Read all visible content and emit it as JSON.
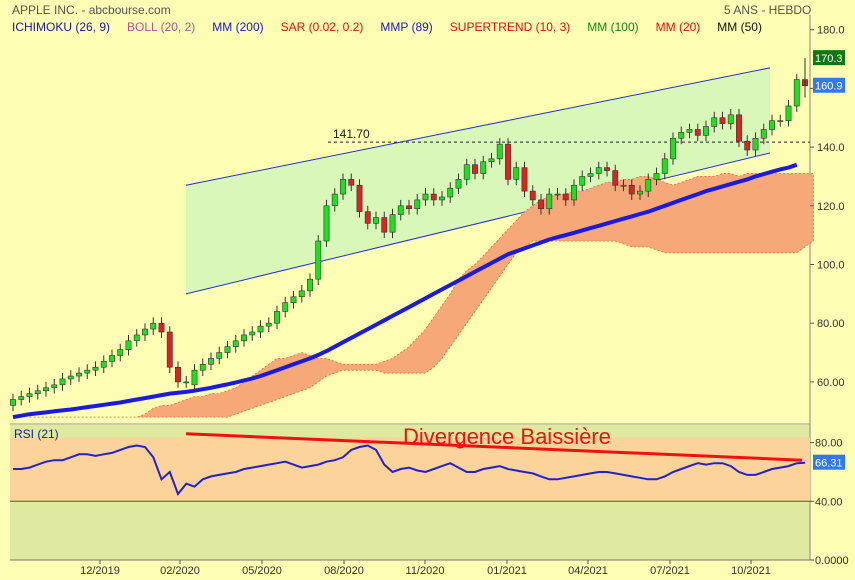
{
  "header": {
    "title": "APPLE INC. - abcbourse.com",
    "period": "5 ANS - HEBDO"
  },
  "indicators": [
    {
      "label": "ICHIMOKU (26, 9)",
      "color": "#1a1aa0"
    },
    {
      "label": "BOLL (20, 2)",
      "color": "#b05a8a"
    },
    {
      "label": "MM (200)",
      "color": "#1a1acc"
    },
    {
      "label": "SAR (0.02, 0.2)",
      "color": "#dd1111"
    },
    {
      "label": "MMP (89)",
      "color": "#1a1acc"
    },
    {
      "label": "SUPERTREND (10, 3)",
      "color": "#dd1111"
    },
    {
      "label": "MM (100)",
      "color": "#118811"
    },
    {
      "label": "MM (20)",
      "color": "#dd1111"
    },
    {
      "label": "MM (50)",
      "color": "#111111"
    }
  ],
  "chart_data": [
    {
      "type": "candlestick",
      "title": "APPLE INC.",
      "x_ticks": [
        "12/2019",
        "02/2020",
        "05/2020",
        "08/2020",
        "11/2020",
        "01/2021",
        "04/2021",
        "07/2021",
        "10/2021"
      ],
      "y_ticks": [
        60.0,
        80.0,
        100.0,
        120.0,
        140.0,
        160.0,
        180.0
      ],
      "y_tick_labels": [
        "60.00",
        "80.00",
        "100.0",
        "120.0",
        "140.0",
        "160.0",
        "180.0"
      ],
      "ylim": [
        46,
        185
      ],
      "last_high_label": "170.3",
      "last_close_label": "160.9",
      "last_high": 170.3,
      "last_close": 160.9,
      "annotation": {
        "label": "141.70",
        "value": 141.7
      },
      "closes": [
        54,
        55,
        56,
        57,
        58,
        59,
        61,
        62,
        63,
        64,
        65,
        67,
        69,
        71,
        74,
        76,
        78,
        80,
        77,
        65,
        60,
        60,
        64,
        66,
        68,
        70,
        72,
        74,
        76,
        77,
        79,
        80,
        84,
        87,
        89,
        91,
        95,
        108,
        120,
        124,
        129,
        127,
        118,
        114,
        116,
        111,
        117,
        120,
        119,
        122,
        124,
        122,
        123,
        126,
        129,
        134,
        131,
        135,
        136,
        141,
        129,
        133,
        125,
        122,
        119,
        124,
        124,
        122,
        127,
        130,
        131,
        133,
        132,
        127,
        127,
        124,
        125,
        129,
        131,
        136,
        143,
        145,
        146,
        144,
        147,
        150,
        148,
        151,
        142,
        139,
        143,
        146,
        149,
        149,
        154,
        163,
        160.9
      ],
      "opens": [
        52,
        54,
        55,
        56,
        57,
        58,
        59,
        61,
        62,
        63,
        64,
        65,
        67,
        69,
        71,
        74,
        76,
        78,
        80,
        77,
        65,
        60,
        59,
        64,
        66,
        68,
        70,
        72,
        74,
        76,
        77,
        79,
        80,
        84,
        87,
        89,
        91,
        95,
        108,
        120,
        124,
        129,
        127,
        118,
        114,
        116,
        111,
        117,
        120,
        119,
        122,
        124,
        122,
        123,
        126,
        129,
        134,
        131,
        135,
        136,
        141,
        129,
        133,
        125,
        122,
        119,
        124,
        124,
        122,
        127,
        130,
        131,
        133,
        132,
        127,
        127,
        124,
        125,
        129,
        131,
        136,
        143,
        145,
        146,
        144,
        147,
        150,
        148,
        151,
        142,
        139,
        143,
        146,
        149,
        149,
        154,
        163
      ],
      "ma200": [
        48,
        48.5,
        49,
        49.3,
        49.6,
        50,
        50.3,
        50.6,
        51,
        51.4,
        51.8,
        52.2,
        52.6,
        53,
        53.5,
        54,
        54.5,
        55,
        55.5,
        56,
        56.3,
        56.6,
        57,
        57.5,
        58,
        58.6,
        59.2,
        59.8,
        60.5,
        61.2,
        62,
        63,
        64,
        65,
        66,
        67,
        68,
        69.2,
        70.5,
        72,
        73.5,
        75,
        76.5,
        78,
        79.5,
        81,
        82.5,
        84,
        85.5,
        87,
        88.5,
        90,
        91.5,
        93,
        94.5,
        96,
        97.5,
        99,
        100.5,
        102,
        103.5,
        104.5,
        105.5,
        106.5,
        107.5,
        108.5,
        109.3,
        110,
        110.8,
        111.6,
        112.4,
        113.2,
        114,
        114.8,
        115.6,
        116.4,
        117.2,
        118,
        119,
        120,
        121,
        122,
        123,
        124,
        125,
        125.8,
        126.6,
        127.4,
        128.2,
        129,
        130,
        130.8,
        131.6,
        132.4,
        133,
        134
      ],
      "cloud_a": [
        48,
        48,
        48,
        48,
        48,
        48,
        48,
        48,
        48,
        48,
        48,
        48,
        48,
        48,
        49,
        51,
        52,
        52,
        53,
        54,
        55,
        55,
        56,
        56,
        57,
        58,
        60,
        62,
        64,
        66,
        68,
        68,
        69,
        70,
        69,
        68,
        68,
        67,
        66,
        66,
        66,
        66,
        66,
        67,
        68,
        70,
        72,
        75,
        78,
        82,
        86,
        90,
        95,
        98,
        100,
        103,
        106,
        109,
        112,
        115,
        118,
        120,
        122,
        123,
        124,
        124,
        125,
        125,
        126,
        127,
        128,
        128,
        129,
        129,
        130,
        130,
        129,
        128,
        127,
        128,
        129,
        130,
        130,
        130,
        131,
        131,
        130,
        131,
        131,
        131,
        131,
        131,
        131,
        131,
        131,
        131
      ],
      "cloud_b": [
        48,
        48,
        48,
        48,
        48,
        48,
        48,
        48,
        48,
        48,
        48,
        48,
        48,
        48,
        48,
        48,
        48,
        48,
        48,
        48,
        48,
        48,
        48,
        48,
        48,
        49,
        50,
        51,
        52,
        53,
        54,
        55,
        56,
        57,
        58,
        60,
        62,
        63,
        64,
        64,
        64,
        64,
        64,
        63,
        63,
        63,
        63,
        63,
        63,
        65,
        68,
        72,
        76,
        80,
        84,
        88,
        92,
        96,
        100,
        104,
        106,
        108,
        108,
        108,
        108,
        108,
        108,
        108,
        108,
        108,
        108,
        108,
        107,
        106,
        106,
        106,
        105,
        104,
        104,
        104,
        104,
        104,
        104,
        104,
        104,
        104,
        104,
        104,
        104,
        104,
        104,
        104,
        104,
        104,
        106,
        108,
        110,
        112,
        113
      ],
      "channel": {
        "upper": [
          [
            0.22,
            127
          ],
          [
            0.95,
            167
          ]
        ],
        "lower": [
          [
            0.22,
            90
          ],
          [
            0.95,
            138
          ]
        ]
      }
    },
    {
      "type": "line",
      "title": "RSI (21)",
      "y_ticks": [
        0.0,
        40.0,
        80.0
      ],
      "y_tick_labels": [
        "0.0000",
        "40.00",
        "80.00"
      ],
      "ylim": [
        0,
        92
      ],
      "last_value_label": "66.31",
      "last_value": 66.31,
      "annotation": "Divergence Baissière",
      "values": [
        62,
        62,
        63,
        65,
        67,
        68,
        68,
        70,
        72,
        72,
        71,
        72,
        73,
        75,
        77,
        78,
        77,
        70,
        55,
        60,
        45,
        52,
        50,
        55,
        57,
        58,
        59,
        60,
        62,
        63,
        64,
        65,
        66,
        67,
        65,
        63,
        64,
        65,
        67,
        68,
        70,
        75,
        77,
        78,
        75,
        65,
        60,
        62,
        63,
        61,
        60,
        62,
        64,
        66,
        63,
        60,
        60,
        62,
        63,
        64,
        62,
        61,
        60,
        59,
        57,
        55,
        55,
        56,
        57,
        58,
        59,
        60,
        60,
        59,
        58,
        57,
        56,
        55,
        55,
        57,
        60,
        62,
        64,
        66,
        65,
        66,
        66,
        64,
        60,
        58,
        58,
        60,
        62,
        63,
        64,
        66,
        66.31
      ],
      "divergence_line": [
        [
          0.22,
          86
        ],
        [
          0.99,
          68
        ]
      ]
    }
  ]
}
